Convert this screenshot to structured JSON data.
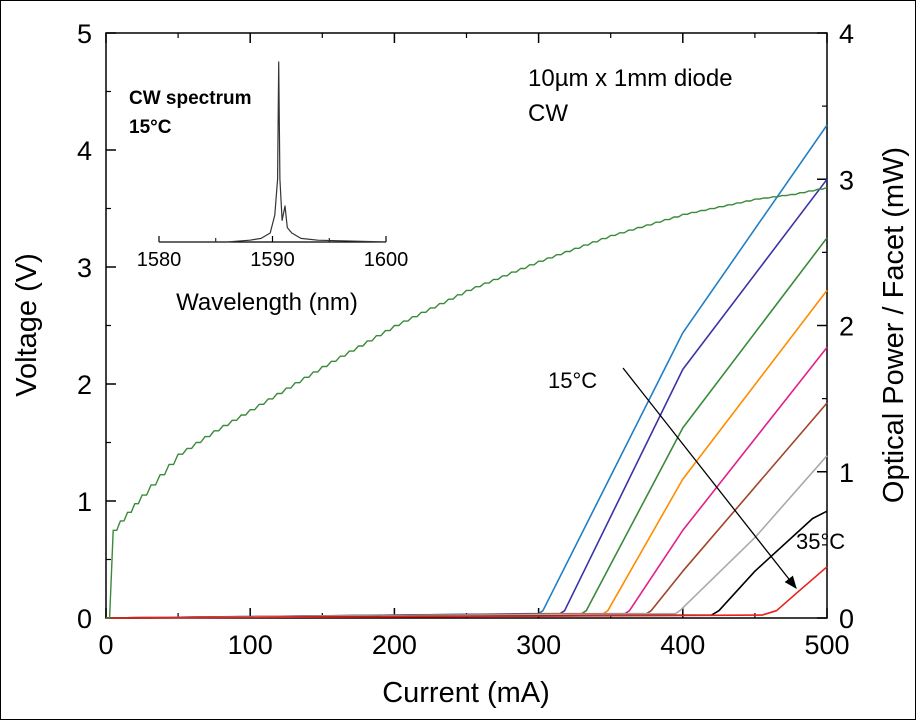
{
  "chart_data": {
    "type": "line",
    "xlabel": "Current (mA)",
    "ylabel": "Voltage (V)",
    "y2label": "Optical Power / Facet (mW)",
    "xlim": [
      0,
      500
    ],
    "ylim": [
      0,
      5
    ],
    "y2lim": [
      0,
      4
    ],
    "x_ticks": [
      "0",
      "100",
      "200",
      "300",
      "400",
      "500"
    ],
    "y_ticks": [
      "0",
      "1",
      "2",
      "3",
      "4",
      "5"
    ],
    "y2_ticks": [
      "0",
      "1",
      "2",
      "3",
      "4"
    ],
    "grid": false,
    "annotations": {
      "device": "10µm x 1mm diode",
      "mode": "CW",
      "temp_start": "15°C",
      "temp_end": "35°C"
    },
    "voltage_series": {
      "axis": "left",
      "color": "#3a8a3a",
      "points": [
        [
          0,
          0
        ],
        [
          5,
          0.75
        ],
        [
          10,
          0.83
        ],
        [
          25,
          1.05
        ],
        [
          50,
          1.4
        ],
        [
          75,
          1.6
        ],
        [
          100,
          1.78
        ],
        [
          150,
          2.15
        ],
        [
          200,
          2.5
        ],
        [
          250,
          2.8
        ],
        [
          300,
          3.05
        ],
        [
          350,
          3.27
        ],
        [
          400,
          3.45
        ],
        [
          450,
          3.58
        ],
        [
          475,
          3.62
        ],
        [
          500,
          3.68
        ]
      ]
    },
    "power_series": [
      {
        "color": "#1f7fc4",
        "points": [
          [
            0,
            0
          ],
          [
            300,
            0.03
          ],
          [
            303,
            0.05
          ],
          [
            400,
            1.95
          ],
          [
            500,
            3.37
          ]
        ]
      },
      {
        "color": "#3a33a8",
        "points": [
          [
            0,
            0
          ],
          [
            315,
            0.03
          ],
          [
            318,
            0.05
          ],
          [
            400,
            1.7
          ],
          [
            500,
            3.0
          ]
        ]
      },
      {
        "color": "#3a8a3a",
        "points": [
          [
            0,
            0
          ],
          [
            330,
            0.03
          ],
          [
            333,
            0.05
          ],
          [
            400,
            1.3
          ],
          [
            500,
            2.6
          ]
        ]
      },
      {
        "color": "#ff8c00",
        "points": [
          [
            0,
            0
          ],
          [
            345,
            0.03
          ],
          [
            348,
            0.05
          ],
          [
            400,
            0.95
          ],
          [
            500,
            2.24
          ]
        ]
      },
      {
        "color": "#e0208a",
        "points": [
          [
            0,
            0
          ],
          [
            360,
            0.03
          ],
          [
            363,
            0.05
          ],
          [
            400,
            0.6
          ],
          [
            500,
            1.85
          ]
        ]
      },
      {
        "color": "#a0442a",
        "points": [
          [
            0,
            0
          ],
          [
            375,
            0.03
          ],
          [
            378,
            0.05
          ],
          [
            400,
            0.32
          ],
          [
            500,
            1.47
          ]
        ]
      },
      {
        "color": "#aaaaaa",
        "points": [
          [
            0,
            0
          ],
          [
            395,
            0.03
          ],
          [
            398,
            0.05
          ],
          [
            450,
            0.55
          ],
          [
            500,
            1.11
          ]
        ]
      },
      {
        "color": "#000000",
        "points": [
          [
            0,
            0
          ],
          [
            420,
            0.02
          ],
          [
            425,
            0.05
          ],
          [
            450,
            0.32
          ],
          [
            490,
            0.68
          ],
          [
            500,
            0.73
          ]
        ]
      },
      {
        "color": "#e8201a",
        "points": [
          [
            0,
            0
          ],
          [
            455,
            0.02
          ],
          [
            465,
            0.05
          ],
          [
            480,
            0.18
          ],
          [
            500,
            0.35
          ]
        ]
      }
    ],
    "inset": {
      "title": "CW spectrum",
      "subtitle": "15°C",
      "xlabel": "Wavelength (nm)",
      "xlim": [
        1580,
        1600
      ],
      "x_ticks": [
        "1580",
        "1590",
        "1600"
      ],
      "color": "#333333",
      "points": [
        [
          1580,
          0.0
        ],
        [
          1586,
          0.0
        ],
        [
          1588,
          0.01
        ],
        [
          1589,
          0.02
        ],
        [
          1589.8,
          0.05
        ],
        [
          1590.2,
          0.15
        ],
        [
          1590.45,
          0.35
        ],
        [
          1590.55,
          1.0
        ],
        [
          1590.65,
          0.35
        ],
        [
          1590.85,
          0.12
        ],
        [
          1591.1,
          0.2
        ],
        [
          1591.3,
          0.08
        ],
        [
          1591.7,
          0.05
        ],
        [
          1592.5,
          0.02
        ],
        [
          1594,
          0.01
        ],
        [
          1600,
          0.0
        ]
      ]
    }
  }
}
